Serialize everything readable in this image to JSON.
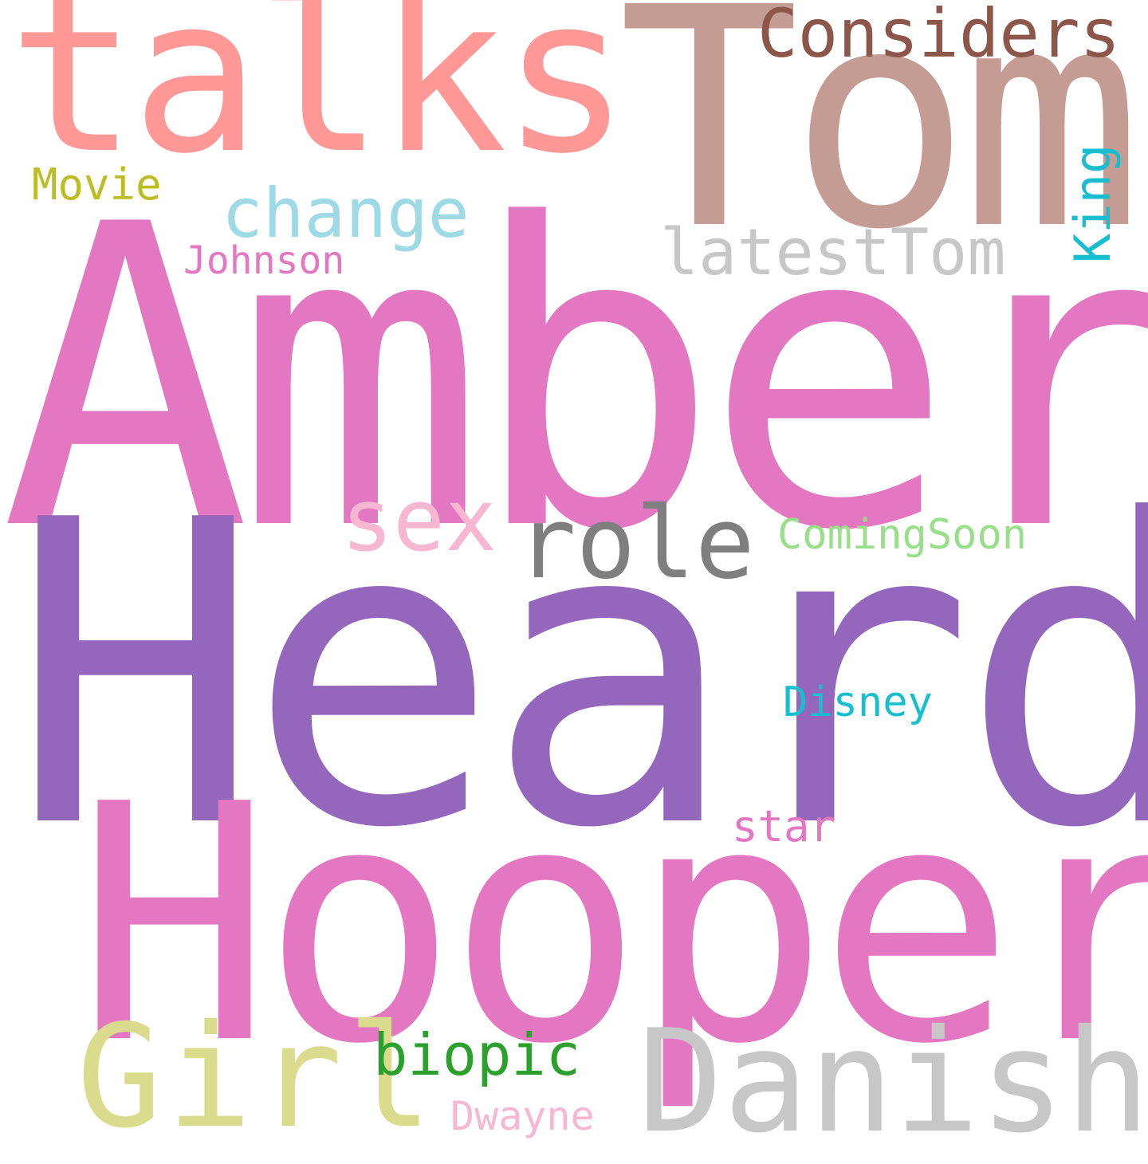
{
  "words": {
    "amber": {
      "text": "Amber",
      "color": "#e377c2"
    },
    "heard": {
      "text": "Heard",
      "color": "#9467bd"
    },
    "hooper": {
      "text": "Hooper",
      "color": "#e377c2"
    },
    "talks": {
      "text": "talks",
      "color": "#ff9896"
    },
    "tom": {
      "text": "Tom",
      "color": "#c49c94"
    },
    "considers": {
      "text": "Considers",
      "color": "#8c564b"
    },
    "movie": {
      "text": "Movie",
      "color": "#bcbd22"
    },
    "change": {
      "text": "change",
      "color": "#9edae5"
    },
    "latesttom": {
      "text": "latestTom",
      "color": "#c7c7c7"
    },
    "king": {
      "text": "King",
      "color": "#17becf"
    },
    "johnson": {
      "text": "Johnson",
      "color": "#e377c2"
    },
    "sex": {
      "text": "sex",
      "color": "#f7b6d2"
    },
    "role": {
      "text": "role",
      "color": "#7f7f7f"
    },
    "comingsoon": {
      "text": "ComingSoon",
      "color": "#98df8a"
    },
    "disney": {
      "text": "Disney",
      "color": "#17becf"
    },
    "star": {
      "text": "star",
      "color": "#e377c2"
    },
    "girl": {
      "text": "Girl",
      "color": "#dbdb8d"
    },
    "biopic": {
      "text": "biopic",
      "color": "#2ca02c"
    },
    "danish": {
      "text": "Danish",
      "color": "#c7c7c7"
    },
    "dwayne": {
      "text": "Dwayne",
      "color": "#f7b6d2"
    }
  }
}
